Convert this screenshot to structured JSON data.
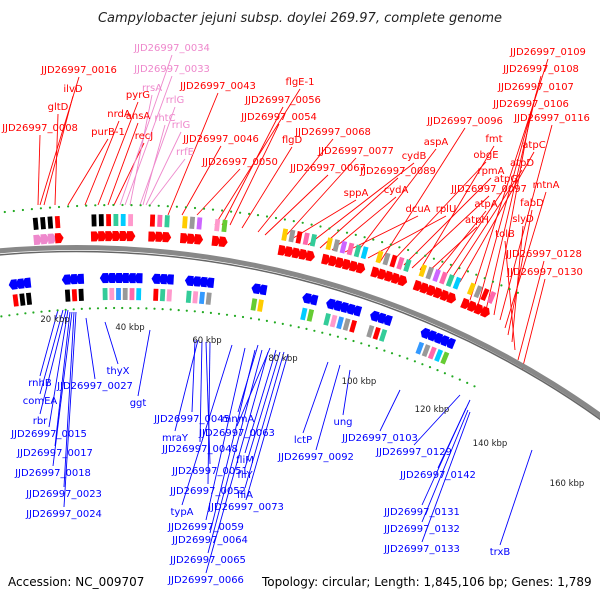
{
  "title": "Campylobacter jejuni subsp. doylei 269.97, complete genome",
  "footer": {
    "accession": "Accession: NC_009707",
    "summary": "Topology: circular; Length: 1,845,106 bp; Genes: 1,789"
  },
  "colors": {
    "forward": "#ff0000",
    "forward_rna": "#ee88cc",
    "reverse": "#0000ff",
    "backbone": "#888888",
    "cog_dots": "#22aa22"
  },
  "ticks": [
    "20 kbp",
    "40 kbp",
    "60 kbp",
    "80 kbp",
    "100 kbp",
    "120 kbp",
    "140 kbp",
    "160 kbp"
  ],
  "forward_labels": [
    "JJD26997_0016",
    "ilvD",
    "gltD",
    "JJD26997_0008",
    "purB-1",
    "nrdA",
    "pyrG",
    "ansA",
    "recJ",
    "JJD26997_0034",
    "JJD26997_0033",
    "rrsA",
    "rrlG",
    "rhtC",
    "rrlG",
    "rrfE",
    "JJD26997_0043",
    "JJD26997_0046",
    "JJD26997_0050",
    "flgE-1",
    "JJD26997_0056",
    "JJD26997_0054",
    "flgD",
    "JJD26997_0068",
    "JJD26997_0067",
    "JJD26997_0077",
    "sppA",
    "cydB",
    "JJD26997_0089",
    "cydA",
    "dcuA",
    "aspA",
    "rplU",
    "JJD26997_0096",
    "obgE",
    "rpmA",
    "JJD26997_0097",
    "fmt",
    "atpH",
    "atpA",
    "atpG",
    "atpD",
    "atpC",
    "JJD26997_0109",
    "JJD26997_0108",
    "JJD26997_0107",
    "JJD26997_0106",
    "JJD26997_0116",
    "mtnA",
    "fabD",
    "slyD",
    "tolB",
    "JJD26997_0128",
    "JJD26997_0130"
  ],
  "reverse_labels": [
    "rnhB",
    "comEA",
    "rbr",
    "JJD26997_0015",
    "JJD26997_0017",
    "JJD26997_0018",
    "JJD26997_0023",
    "JJD26997_0024",
    "JJD26997_0027",
    "thyX",
    "ggt",
    "JJD26997_0045",
    "mraY",
    "JJD26997_0048",
    "JJD26997_0051",
    "JJD26997_0052",
    "typA",
    "JJD26997_0059",
    "JJD26997_0064",
    "JJD26997_0065",
    "JJD26997_0066",
    "mnmA",
    "JJD26997_0063",
    "fliM",
    "fliY",
    "fliA",
    "JJD26997_0073",
    "lctP",
    "JJD26997_0092",
    "ung",
    "JJD26997_0103",
    "JJD26997_0129",
    "JJD26997_0142",
    "JJD26997_0131",
    "JJD26997_0132",
    "JJD26997_0133",
    "trxB"
  ]
}
